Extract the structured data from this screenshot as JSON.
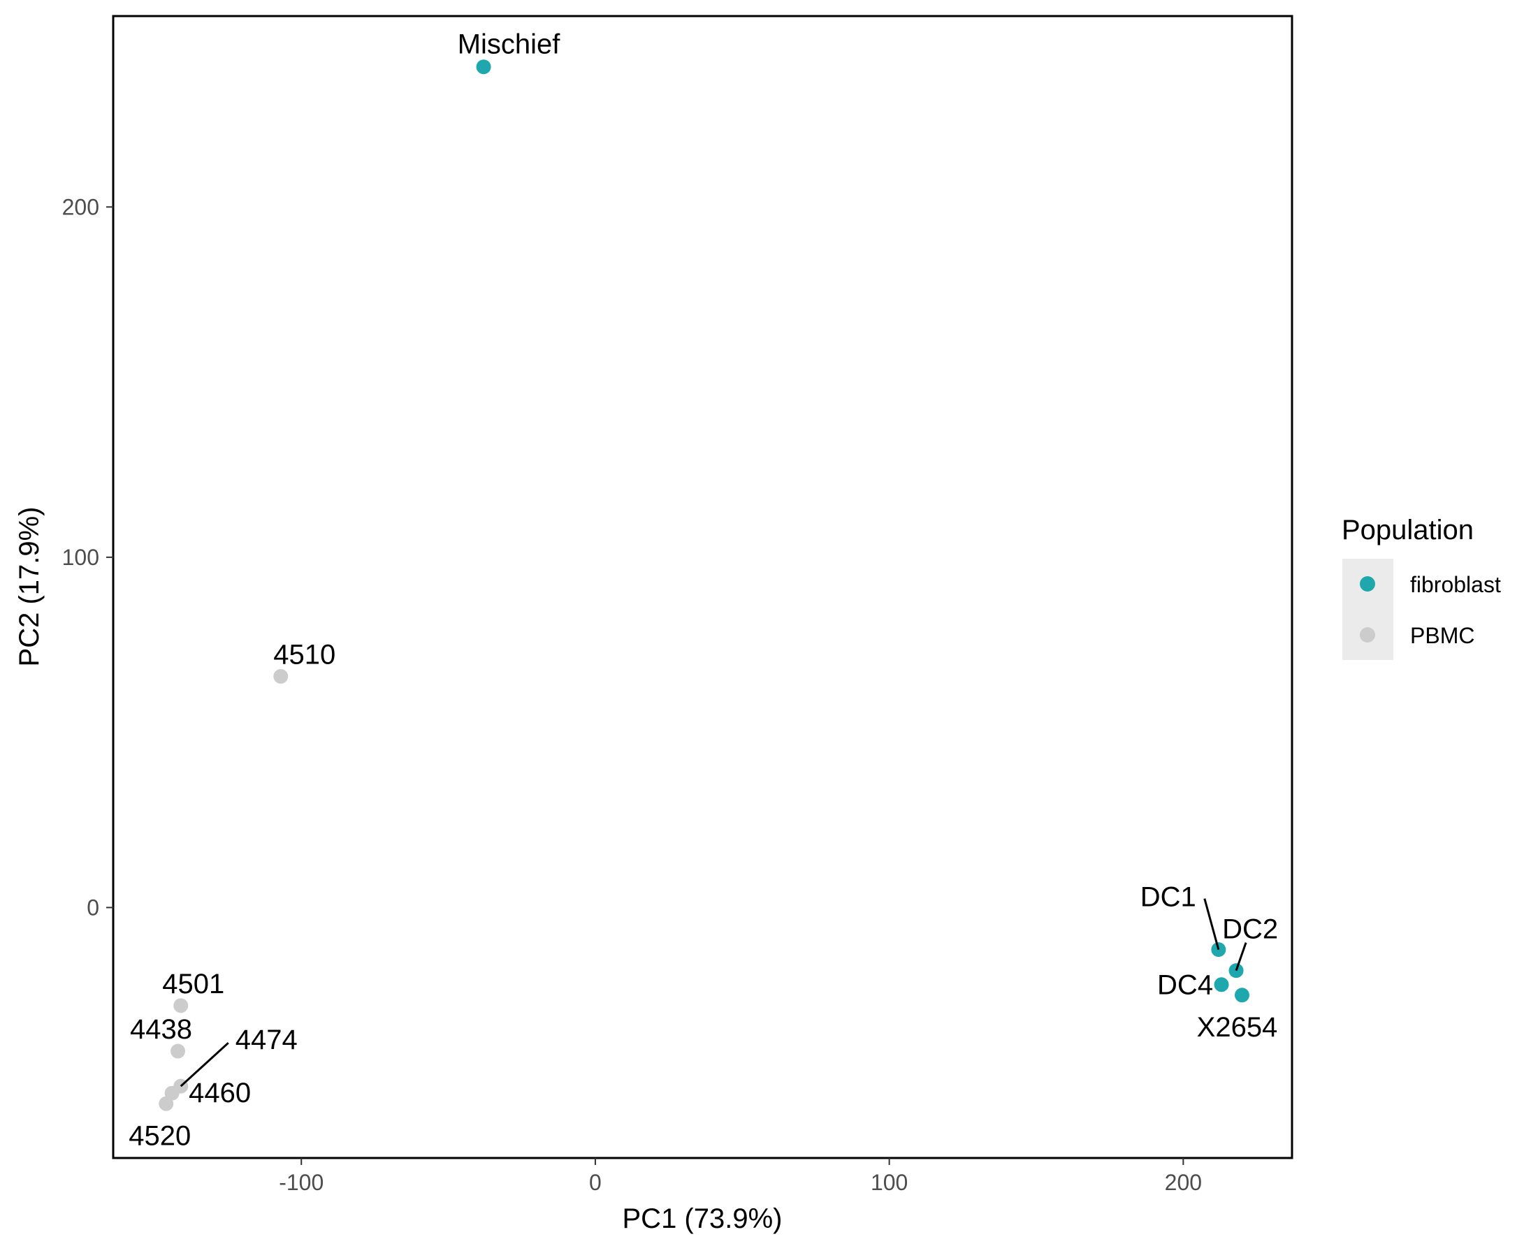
{
  "chart_data": {
    "type": "scatter",
    "title": "",
    "xlabel": "PC1 (73.9%)",
    "ylabel": "PC2 (17.9%)",
    "xlim": [
      -164,
      237
    ],
    "ylim": [
      -71.5,
      254.5
    ],
    "x_ticks": [
      -100,
      0,
      100,
      200
    ],
    "x_tick_labels": [
      "-100",
      "0",
      "100",
      "200"
    ],
    "y_ticks": [
      0,
      100,
      200
    ],
    "y_tick_labels": [
      "0",
      "100",
      "200"
    ],
    "grid": false,
    "legend": {
      "title": "Population",
      "placement": "right",
      "entries": [
        {
          "label": "fibroblast",
          "color": "#1fa7ae"
        },
        {
          "label": "PBMC",
          "color": "#cccccc"
        }
      ]
    },
    "points": [
      {
        "label": "Mischief",
        "population": "fibroblast",
        "x": -38,
        "y": 240
      },
      {
        "label": "4510",
        "population": "PBMC",
        "x": -107,
        "y": 66
      },
      {
        "label": "DC1",
        "population": "fibroblast",
        "x": 212,
        "y": -12
      },
      {
        "label": "DC2",
        "population": "fibroblast",
        "x": 218,
        "y": -18
      },
      {
        "label": "DC4",
        "population": "fibroblast",
        "x": 213,
        "y": -22
      },
      {
        "label": "X2654",
        "population": "fibroblast",
        "x": 220,
        "y": -25
      },
      {
        "label": "4501",
        "population": "PBMC",
        "x": -141,
        "y": -28
      },
      {
        "label": "4438",
        "population": "PBMC",
        "x": -142,
        "y": -41
      },
      {
        "label": "4474",
        "population": "PBMC",
        "x": -141,
        "y": -51
      },
      {
        "label": "4460",
        "population": "PBMC",
        "x": -144,
        "y": -53
      },
      {
        "label": "4520",
        "population": "PBMC",
        "x": -146,
        "y": -56
      }
    ]
  }
}
